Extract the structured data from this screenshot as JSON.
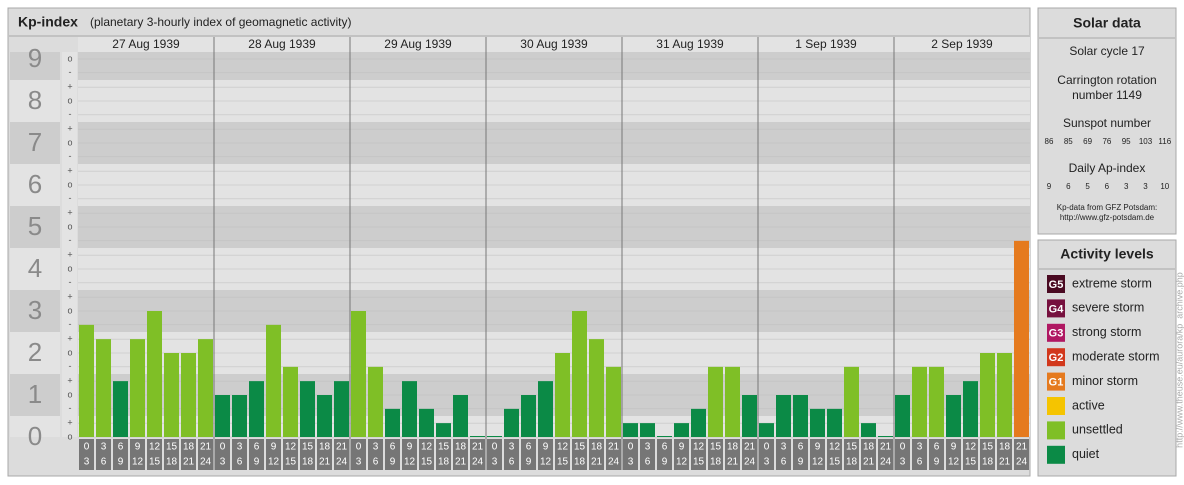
{
  "chart_data": {
    "type": "bar",
    "title": "Kp-index",
    "subtitle": "(planetary 3-hourly index of geomagnetic activity)",
    "days": [
      "27 Aug 1939",
      "28 Aug 1939",
      "29 Aug 1939",
      "30 Aug 1939",
      "31 Aug 1939",
      "1 Sep 1939",
      "2 Sep 1939"
    ],
    "hours": [
      0,
      3,
      6,
      9,
      12,
      15,
      18,
      21,
      24
    ],
    "values": [
      2.67,
      2.33,
      1.33,
      2.33,
      3,
      2,
      2,
      2.33,
      1,
      1,
      1.33,
      2.67,
      1.67,
      1.33,
      1,
      1.33,
      3,
      1.67,
      0.67,
      1.33,
      0.67,
      0.33,
      1,
      0,
      0,
      0.67,
      1,
      1.33,
      2,
      3,
      2.33,
      1.67,
      0.33,
      0.33,
      0,
      0.33,
      0.67,
      1.67,
      1.67,
      1,
      0.33,
      1,
      1,
      0.67,
      0.67,
      1.67,
      0.33,
      0,
      1,
      1.67,
      1.67,
      1,
      1.33,
      2,
      2,
      4.67
    ],
    "bar_colors": [
      "#7fbf26",
      "#7fbf26",
      "#0b8a46",
      "#7fbf26",
      "#7fbf26",
      "#7fbf26",
      "#7fbf26",
      "#7fbf26",
      "#0b8a46",
      "#0b8a46",
      "#0b8a46",
      "#7fbf26",
      "#7fbf26",
      "#0b8a46",
      "#0b8a46",
      "#0b8a46",
      "#7fbf26",
      "#7fbf26",
      "#0b8a46",
      "#0b8a46",
      "#0b8a46",
      "#0b8a46",
      "#0b8a46",
      "#0b8a46",
      "#0b8a46",
      "#0b8a46",
      "#0b8a46",
      "#0b8a46",
      "#7fbf26",
      "#7fbf26",
      "#7fbf26",
      "#7fbf26",
      "#0b8a46",
      "#0b8a46",
      "#0b8a46",
      "#0b8a46",
      "#0b8a46",
      "#7fbf26",
      "#7fbf26",
      "#0b8a46",
      "#0b8a46",
      "#0b8a46",
      "#0b8a46",
      "#0b8a46",
      "#0b8a46",
      "#7fbf26",
      "#0b8a46",
      "#0b8a46",
      "#0b8a46",
      "#7fbf26",
      "#7fbf26",
      "#0b8a46",
      "#0b8a46",
      "#7fbf26",
      "#7fbf26",
      "#e57a1e"
    ],
    "ylim": [
      0,
      9
    ],
    "yticks": [
      0,
      1,
      2,
      3,
      4,
      5,
      6,
      7,
      8,
      9
    ],
    "minor_ticks": [
      {
        "value": 9,
        "label": "o"
      },
      {
        "value": 8.67,
        "label": "-"
      },
      {
        "value": 8.33,
        "label": "+"
      },
      {
        "value": 8,
        "label": "o"
      },
      {
        "value": 7.67,
        "label": "-"
      },
      {
        "value": 7.33,
        "label": "+"
      },
      {
        "value": 7,
        "label": "o"
      },
      {
        "value": 6.67,
        "label": "-"
      },
      {
        "value": 6.33,
        "label": "+"
      },
      {
        "value": 6,
        "label": "o"
      },
      {
        "value": 5.67,
        "label": "-"
      },
      {
        "value": 5.33,
        "label": "+"
      },
      {
        "value": 5,
        "label": "o"
      },
      {
        "value": 4.67,
        "label": "-"
      },
      {
        "value": 4.33,
        "label": "+"
      },
      {
        "value": 4,
        "label": "o"
      },
      {
        "value": 3.67,
        "label": "-"
      },
      {
        "value": 3.33,
        "label": "+"
      },
      {
        "value": 3,
        "label": "o"
      },
      {
        "value": 2.67,
        "label": "-"
      },
      {
        "value": 2.33,
        "label": "+"
      },
      {
        "value": 2,
        "label": "o"
      },
      {
        "value": 1.67,
        "label": "-"
      },
      {
        "value": 1.33,
        "label": "+"
      },
      {
        "value": 1,
        "label": "o"
      },
      {
        "value": 0.67,
        "label": "-"
      },
      {
        "value": 0.33,
        "label": "+"
      },
      {
        "value": 0,
        "label": "o"
      }
    ],
    "band_colors": [
      "#e3e3e3",
      "#cdcdcd"
    ],
    "solar": {
      "title": "Solar data",
      "cycle": "Solar cycle 17",
      "carrington": [
        "Carrington rotation",
        "number 1149"
      ],
      "sunspot_title": "Sunspot number",
      "sunspot": [
        86,
        85,
        69,
        76,
        95,
        103,
        116
      ],
      "ap_title": "Daily Ap-index",
      "ap": [
        9,
        6,
        5,
        6,
        3,
        3,
        10
      ],
      "source": [
        "Kp-data from GFZ Potsdam:",
        "http://www.gfz-potsdam.de"
      ]
    },
    "levels": {
      "title": "Activity levels",
      "items": [
        {
          "badge": "G5",
          "label": "extreme storm",
          "color": "#4a0a22"
        },
        {
          "badge": "G4",
          "label": "severe storm",
          "color": "#76103e"
        },
        {
          "badge": "G3",
          "label": "strong storm",
          "color": "#b01862"
        },
        {
          "badge": "G2",
          "label": "moderate storm",
          "color": "#d2381c"
        },
        {
          "badge": "G1",
          "label": "minor storm",
          "color": "#e57a1e"
        },
        {
          "label": "active",
          "color": "#f5c400"
        },
        {
          "label": "unsettled",
          "color": "#7fbf26"
        },
        {
          "label": "quiet",
          "color": "#0b8a46"
        }
      ]
    },
    "credit": "http://www.theuse.eu/aurora/kp_archive.php"
  }
}
